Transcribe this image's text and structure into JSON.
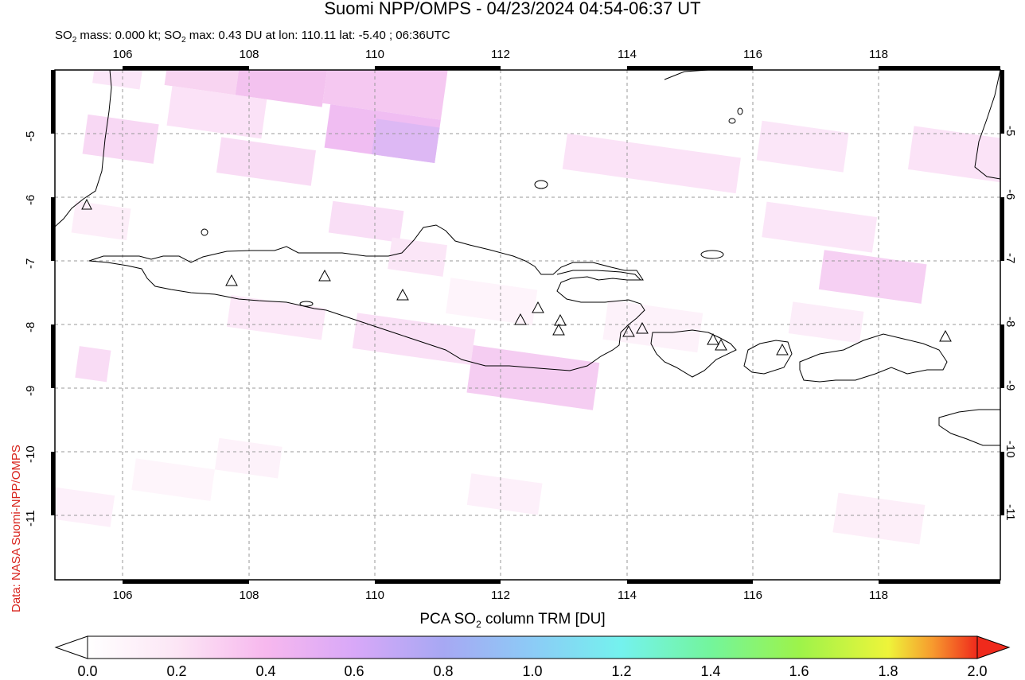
{
  "title": "Suomi NPP/OMPS - 04/23/2024 04:54-06:37 UT",
  "subtitle": {
    "prefix": "SO",
    "sub": "2",
    "mid": " mass: 0.000 kt; SO",
    "sub2": "2",
    "rest": " max: 0.43 DU at lon: 110.11 lat: -5.40 ; 06:36UTC"
  },
  "credit": "Data: NASA Suomi-NPP/OMPS",
  "colorbar": {
    "title_prefix": "PCA SO",
    "title_sub": "2",
    "title_rest": " column TRM [DU]",
    "ticks": [
      "0.0",
      "0.2",
      "0.4",
      "0.6",
      "0.8",
      "1.0",
      "1.2",
      "1.4",
      "1.6",
      "1.8",
      "2.0"
    ],
    "colors": [
      "#ffffff",
      "#fce6f5",
      "#f7b8ee",
      "#d8a8f8",
      "#a7a8f3",
      "#8ccbf6",
      "#74f2ee",
      "#73f59c",
      "#9df34a",
      "#eef43a",
      "#f79a2e",
      "#ef2a1c"
    ]
  },
  "map": {
    "lon_ticks": [
      "106",
      "108",
      "110",
      "112",
      "114",
      "116",
      "118"
    ],
    "lat_ticks": [
      "-5",
      "-6",
      "-7",
      "-8",
      "-9",
      "-10",
      "-11"
    ]
  },
  "volcano_icon": "triangle-outline-icon"
}
